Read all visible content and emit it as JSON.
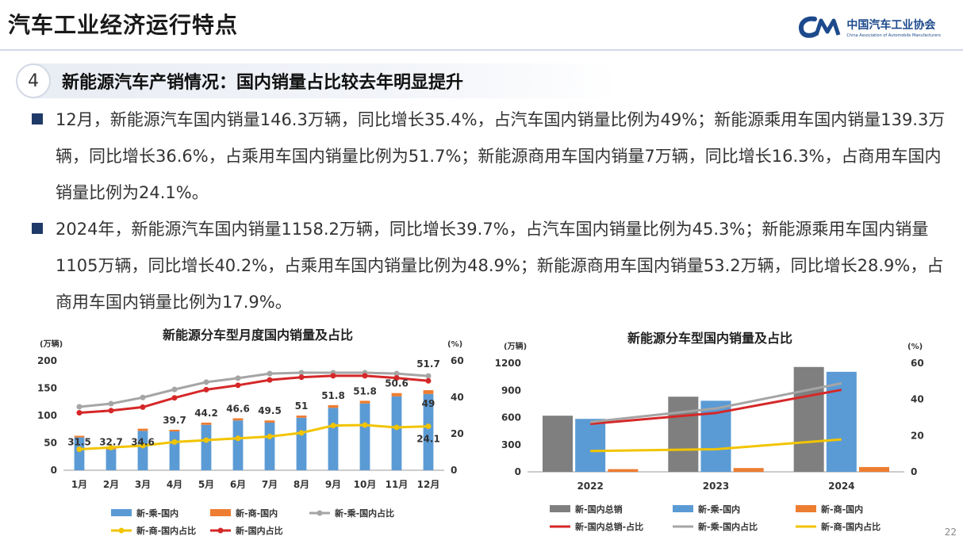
{
  "header": {
    "title": "汽车工业经济运行特点",
    "logo_cn": "中国汽车工业协会",
    "logo_en": "China Association of Automobile Manufacturers",
    "logo_mark": "CM"
  },
  "section": {
    "number": "4",
    "title": "新能源汽车产销情况：国内销量占比较去年明显提升"
  },
  "bullets": [
    "12月，新能源汽车国内销量146.3万辆，同比增长35.4%，占汽车国内销量比例为49%；新能源乘用车国内销量139.3万辆，同比增长36.6%，占乘用车国内销量比例为51.7%；新能源商用车国内销量7万辆，同比增长16.3%，占商用车国内销量比例为24.1%。",
    "2024年，新能源汽车国内销量1158.2万辆，同比增长39.7%，占汽车国内销量比例为45.3%；新能源乘用车国内销量1105万辆，同比增长40.2%，占乘用车国内销量比例为48.9%；新能源商用车国内销量53.2万辆，同比增长28.9%，占商用车国内销量比例为17.9%。"
  ],
  "page_number": "22",
  "colors": {
    "blue": "#5b9bd5",
    "orange": "#ed7d31",
    "gray": "#a5a5a5",
    "yellow": "#f2c400",
    "red": "#d62728",
    "darkgray": "#7f7f7f"
  },
  "chart_data": [
    {
      "type": "bar",
      "title": "新能源分车型月度国内销量及占比",
      "left_unit": "(万辆)",
      "right_unit": "(%)",
      "ylim": [
        0,
        200
      ],
      "y2lim": [
        0,
        60
      ],
      "yticks": [
        0,
        50,
        100,
        150,
        200
      ],
      "y2ticks": [
        0,
        20,
        40,
        60
      ],
      "categories": [
        "1月",
        "2月",
        "3月",
        "4月",
        "5月",
        "6月",
        "7月",
        "8月",
        "9月",
        "10月",
        "11月",
        "12月"
      ],
      "bar_series": [
        {
          "name": "新-乘-国内",
          "color": "#5b9bd5",
          "values": [
            60,
            38,
            72,
            71,
            83,
            91,
            87,
            96,
            114,
            122,
            135,
            139.3
          ]
        },
        {
          "name": "新-商-国内",
          "color": "#ed7d31",
          "values": [
            3,
            2,
            4,
            3,
            4,
            4,
            4,
            4,
            5,
            5,
            6,
            7
          ]
        }
      ],
      "line_series": [
        {
          "name": "新-乘-国内占比",
          "color": "#a5a5a5",
          "values": [
            34.8,
            36.5,
            39.9,
            44.3,
            48.3,
            50.5,
            53,
            53.5,
            53.5,
            53.5,
            53,
            51.7
          ]
        },
        {
          "name": "新-商-国内占比",
          "color": "#f2c400",
          "values": [
            11.5,
            12.5,
            13.5,
            15.5,
            16.5,
            17.5,
            18.5,
            20.5,
            24.5,
            24.8,
            23.5,
            24.1
          ]
        },
        {
          "name": "新-国内占比",
          "color": "#d62728",
          "values": [
            31.5,
            32.7,
            34.6,
            39.7,
            44.2,
            46.6,
            49.5,
            51,
            51.8,
            51.8,
            50.6,
            49
          ]
        }
      ],
      "data_labels": [
        "31.5",
        "32.7",
        "34.6",
        "39.7",
        "44.2",
        "46.6",
        "49.5",
        "51",
        "51.8",
        "51.8",
        "50.6",
        "49"
      ],
      "extra_labels": {
        "first": "51.7",
        "last": "24.1"
      }
    },
    {
      "type": "bar",
      "title": "新能源分车型国内销量及占比",
      "left_unit": "(万辆)",
      "right_unit": "(%)",
      "ylim": [
        0,
        1200
      ],
      "y2lim": [
        0,
        60
      ],
      "yticks": [
        0,
        300,
        600,
        900,
        1200
      ],
      "y2ticks": [
        0,
        20,
        40,
        60
      ],
      "categories": [
        "2022",
        "2023",
        "2024"
      ],
      "bar_series": [
        {
          "name": "新-国内总销",
          "color": "#7f7f7f",
          "values": [
            620,
            830,
            1158.2
          ]
        },
        {
          "name": "新-乘-国内",
          "color": "#5b9bd5",
          "values": [
            585,
            785,
            1105
          ]
        },
        {
          "name": "新-商-国内",
          "color": "#ed7d31",
          "values": [
            30,
            42,
            53.2
          ]
        }
      ],
      "line_series": [
        {
          "name": "新-国内总销-占比",
          "color": "#d62728",
          "values": [
            26.5,
            32.5,
            45.3
          ]
        },
        {
          "name": "新-乘-国内占比",
          "color": "#a5a5a5",
          "values": [
            27.5,
            35,
            48.9
          ]
        },
        {
          "name": "新-商-国内占比",
          "color": "#f2c400",
          "values": [
            11.5,
            12.5,
            17.9
          ]
        }
      ]
    }
  ]
}
